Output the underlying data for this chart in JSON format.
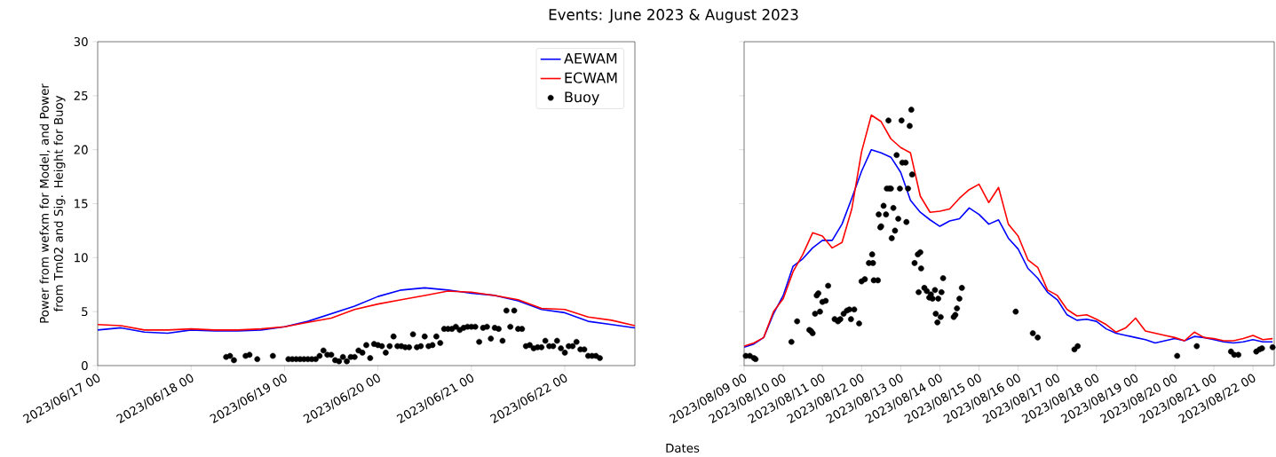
{
  "chart_data": [
    {
      "type": "line",
      "title": "Events: June 2023 & August 2023",
      "xlabel": "Dates",
      "ylabel": "Power from wefxm for Model, and Power from Tm02 and Sig. Height for Buoy",
      "legend": "top right",
      "xlim": [
        "2023-06-17T00:00",
        "2023-06-22T18:00"
      ],
      "ylim": [
        0,
        30
      ],
      "yticks": [
        0,
        5,
        10,
        15,
        20,
        25,
        30
      ],
      "xticks": [
        {
          "value": "2023-06-17T00:00",
          "label": "2023/06/17 00"
        },
        {
          "value": "2023-06-18T00:00",
          "label": "2023/06/18 00"
        },
        {
          "value": "2023-06-19T00:00",
          "label": "2023/06/19 00"
        },
        {
          "value": "2023-06-20T00:00",
          "label": "2023/06/20 00"
        },
        {
          "value": "2023-06-21T00:00",
          "label": "2023/06/21 00"
        },
        {
          "value": "2023-06-22T00:00",
          "label": "2023/06/22 00"
        }
      ],
      "x": [
        "2023-06-17T00:00",
        "2023-06-17T06:00",
        "2023-06-17T12:00",
        "2023-06-17T18:00",
        "2023-06-18T00:00",
        "2023-06-18T06:00",
        "2023-06-18T12:00",
        "2023-06-18T18:00",
        "2023-06-19T00:00",
        "2023-06-19T06:00",
        "2023-06-19T12:00",
        "2023-06-19T18:00",
        "2023-06-20T00:00",
        "2023-06-20T06:00",
        "2023-06-20T12:00",
        "2023-06-20T18:00",
        "2023-06-21T00:00",
        "2023-06-21T06:00",
        "2023-06-21T12:00",
        "2023-06-21T18:00",
        "2023-06-22T00:00",
        "2023-06-22T06:00",
        "2023-06-22T12:00",
        "2023-06-22T18:00"
      ],
      "series": [
        {
          "name": "AEWAM",
          "color": "#0000ff",
          "values": [
            3.3,
            3.5,
            3.1,
            3.0,
            3.3,
            3.2,
            3.2,
            3.3,
            3.6,
            4.1,
            4.8,
            5.5,
            6.4,
            7.0,
            7.2,
            7.0,
            6.7,
            6.5,
            6.0,
            5.2,
            4.9,
            4.1,
            3.8,
            3.5
          ]
        },
        {
          "name": "ECWAM",
          "color": "#ff0000",
          "values": [
            3.8,
            3.7,
            3.3,
            3.3,
            3.4,
            3.3,
            3.3,
            3.4,
            3.6,
            4.0,
            4.4,
            5.2,
            5.7,
            6.1,
            6.5,
            6.9,
            6.8,
            6.5,
            6.1,
            5.3,
            5.2,
            4.5,
            4.2,
            3.7
          ]
        },
        {
          "name": "Buoy",
          "type": "scatter",
          "marker": "circle",
          "color": "#000000",
          "x": [
            "2023-06-18T09:00",
            "2023-06-18T10:00",
            "2023-06-18T11:00",
            "2023-06-18T14:00",
            "2023-06-18T15:00",
            "2023-06-18T17:00",
            "2023-06-18T21:00",
            "2023-06-19T01:00",
            "2023-06-19T02:00",
            "2023-06-19T03:00",
            "2023-06-19T04:00",
            "2023-06-19T05:00",
            "2023-06-19T06:00",
            "2023-06-19T07:00",
            "2023-06-19T08:00",
            "2023-06-19T09:00",
            "2023-06-19T10:00",
            "2023-06-19T11:00",
            "2023-06-19T12:00",
            "2023-06-19T13:00",
            "2023-06-19T14:00",
            "2023-06-19T15:00",
            "2023-06-19T16:00",
            "2023-06-19T17:00",
            "2023-06-19T18:00",
            "2023-06-19T19:00",
            "2023-06-19T20:00",
            "2023-06-19T21:00",
            "2023-06-19T22:00",
            "2023-06-19T23:00",
            "2023-06-20T00:00",
            "2023-06-20T01:00",
            "2023-06-20T02:00",
            "2023-06-20T03:00",
            "2023-06-20T04:00",
            "2023-06-20T05:00",
            "2023-06-20T06:00",
            "2023-06-20T07:00",
            "2023-06-20T08:00",
            "2023-06-20T09:00",
            "2023-06-20T10:00",
            "2023-06-20T11:00",
            "2023-06-20T12:00",
            "2023-06-20T13:00",
            "2023-06-20T14:00",
            "2023-06-20T15:00",
            "2023-06-20T16:00",
            "2023-06-20T17:00",
            "2023-06-20T18:00",
            "2023-06-20T19:00",
            "2023-06-20T20:00",
            "2023-06-20T21:00",
            "2023-06-20T22:00",
            "2023-06-20T23:00",
            "2023-06-21T00:00",
            "2023-06-21T01:00",
            "2023-06-21T02:00",
            "2023-06-21T03:00",
            "2023-06-21T04:00",
            "2023-06-21T05:00",
            "2023-06-21T06:00",
            "2023-06-21T07:00",
            "2023-06-21T08:00",
            "2023-06-21T09:00",
            "2023-06-21T10:00",
            "2023-06-21T11:00",
            "2023-06-21T12:00",
            "2023-06-21T13:00",
            "2023-06-21T14:00",
            "2023-06-21T15:00",
            "2023-06-21T16:00",
            "2023-06-21T17:00",
            "2023-06-21T18:00",
            "2023-06-21T19:00",
            "2023-06-21T20:00",
            "2023-06-21T21:00",
            "2023-06-21T22:00",
            "2023-06-21T23:00",
            "2023-06-22T00:00",
            "2023-06-22T01:00",
            "2023-06-22T02:00",
            "2023-06-22T03:00",
            "2023-06-22T04:00",
            "2023-06-22T05:00",
            "2023-06-22T06:00",
            "2023-06-22T07:00",
            "2023-06-22T08:00",
            "2023-06-22T09:00"
          ],
          "values": [
            0.8,
            0.9,
            0.5,
            0.9,
            1.0,
            0.6,
            0.9,
            0.6,
            0.6,
            0.6,
            0.6,
            0.6,
            0.6,
            0.6,
            0.6,
            0.9,
            1.4,
            1.0,
            1.0,
            0.5,
            0.4,
            0.8,
            0.4,
            0.8,
            0.8,
            1.4,
            1.2,
            1.9,
            0.7,
            2.0,
            1.9,
            1.8,
            1.2,
            1.8,
            2.7,
            1.8,
            1.8,
            1.7,
            1.7,
            2.9,
            1.7,
            1.8,
            2.7,
            1.8,
            1.9,
            2.7,
            2.1,
            3.4,
            3.4,
            3.4,
            3.6,
            3.3,
            3.5,
            3.6,
            3.6,
            3.6,
            2.2,
            3.5,
            3.6,
            2.5,
            3.5,
            3.4,
            2.3,
            5.1,
            3.6,
            5.1,
            3.4,
            3.4,
            1.8,
            1.9,
            1.6,
            1.7,
            1.7,
            2.3,
            1.8,
            1.8,
            2.3,
            1.6,
            1.2,
            1.8,
            1.8,
            2.2,
            1.5,
            1.5,
            0.9,
            0.9,
            0.9,
            0.7
          ]
        }
      ]
    },
    {
      "type": "line",
      "tick_labels": "x",
      "xlim": [
        "2023-08-09T00:00",
        "2023-08-22T13:00"
      ],
      "ylim": [
        0,
        30
      ],
      "yticks": [
        0,
        5,
        10,
        15,
        20,
        25,
        30
      ],
      "xticks": [
        {
          "value": "2023-08-09T00:00",
          "label": "2023/08/09 00"
        },
        {
          "value": "2023-08-10T00:00",
          "label": "2023/08/10 00"
        },
        {
          "value": "2023-08-11T00:00",
          "label": "2023/08/11 00"
        },
        {
          "value": "2023-08-12T00:00",
          "label": "2023/08/12 00"
        },
        {
          "value": "2023-08-13T00:00",
          "label": "2023/08/13 00"
        },
        {
          "value": "2023-08-14T00:00",
          "label": "2023/08/14 00"
        },
        {
          "value": "2023-08-15T00:00",
          "label": "2023/08/15 00"
        },
        {
          "value": "2023-08-16T00:00",
          "label": "2023/08/16 00"
        },
        {
          "value": "2023-08-17T00:00",
          "label": "2023/08/17 00"
        },
        {
          "value": "2023-08-18T00:00",
          "label": "2023/08/18 00"
        },
        {
          "value": "2023-08-19T00:00",
          "label": "2023/08/19 00"
        },
        {
          "value": "2023-08-20T00:00",
          "label": "2023/08/20 00"
        },
        {
          "value": "2023-08-21T00:00",
          "label": "2023/08/21 00"
        },
        {
          "value": "2023-08-22T00:00",
          "label": "2023/08/22 00"
        }
      ],
      "x": [
        "2023-08-09T00:00",
        "2023-08-09T06:00",
        "2023-08-09T12:00",
        "2023-08-09T18:00",
        "2023-08-10T00:00",
        "2023-08-10T06:00",
        "2023-08-10T12:00",
        "2023-08-10T18:00",
        "2023-08-11T00:00",
        "2023-08-11T06:00",
        "2023-08-11T12:00",
        "2023-08-11T18:00",
        "2023-08-12T00:00",
        "2023-08-12T06:00",
        "2023-08-12T12:00",
        "2023-08-12T18:00",
        "2023-08-13T00:00",
        "2023-08-13T06:00",
        "2023-08-13T12:00",
        "2023-08-13T18:00",
        "2023-08-14T00:00",
        "2023-08-14T06:00",
        "2023-08-14T12:00",
        "2023-08-14T18:00",
        "2023-08-15T00:00",
        "2023-08-15T06:00",
        "2023-08-15T12:00",
        "2023-08-15T18:00",
        "2023-08-16T00:00",
        "2023-08-16T06:00",
        "2023-08-16T12:00",
        "2023-08-16T18:00",
        "2023-08-17T00:00",
        "2023-08-17T06:00",
        "2023-08-17T12:00",
        "2023-08-17T18:00",
        "2023-08-18T00:00",
        "2023-08-18T06:00",
        "2023-08-18T12:00",
        "2023-08-18T18:00",
        "2023-08-19T00:00",
        "2023-08-19T06:00",
        "2023-08-19T12:00",
        "2023-08-19T18:00",
        "2023-08-20T00:00",
        "2023-08-20T06:00",
        "2023-08-20T12:00",
        "2023-08-20T18:00",
        "2023-08-21T00:00",
        "2023-08-21T06:00",
        "2023-08-21T12:00",
        "2023-08-21T18:00",
        "2023-08-22T00:00",
        "2023-08-22T06:00",
        "2023-08-22T12:00"
      ],
      "series": [
        {
          "color": "#0000ff",
          "values": [
            1.7,
            2.0,
            2.6,
            4.8,
            6.5,
            9.2,
            9.9,
            10.9,
            11.6,
            11.6,
            13.1,
            15.5,
            18.0,
            20.0,
            19.7,
            19.3,
            17.9,
            15.3,
            14.2,
            13.5,
            12.9,
            13.4,
            13.6,
            14.6,
            14.0,
            13.1,
            13.5,
            11.8,
            10.8,
            9.0,
            8.1,
            6.8,
            6.1,
            4.7,
            4.2,
            4.3,
            4.1,
            3.4,
            3.0,
            2.8,
            2.6,
            2.4,
            2.1,
            2.3,
            2.5,
            2.3,
            2.7,
            2.6,
            2.4,
            2.2,
            2.1,
            2.2,
            2.4,
            2.2,
            2.2
          ]
        },
        {
          "color": "#ff0000",
          "values": [
            1.8,
            2.1,
            2.6,
            5.0,
            6.2,
            8.7,
            10.3,
            12.3,
            12.0,
            10.9,
            11.4,
            14.5,
            19.8,
            23.2,
            22.6,
            21.0,
            20.2,
            19.7,
            15.7,
            14.2,
            14.3,
            14.5,
            15.5,
            16.3,
            16.8,
            15.1,
            16.5,
            13.1,
            12.0,
            9.8,
            9.1,
            7.0,
            6.5,
            5.2,
            4.6,
            4.7,
            4.3,
            3.8,
            3.1,
            3.5,
            4.4,
            3.2,
            3.0,
            2.8,
            2.6,
            2.3,
            3.1,
            2.6,
            2.5,
            2.3,
            2.3,
            2.5,
            2.8,
            2.4,
            2.5
          ]
        },
        {
          "type": "scatter",
          "marker": "circle",
          "color": "#000000",
          "x": [
            "2023-08-09T01:00",
            "2023-08-09T03:30",
            "2023-08-09T06:00",
            "2023-08-09T07:00",
            "2023-08-10T05:00",
            "2023-08-10T08:30",
            "2023-08-10T16:00",
            "2023-08-10T17:00",
            "2023-08-10T18:00",
            "2023-08-10T19:30",
            "2023-08-10T20:30",
            "2023-08-10T21:30",
            "2023-08-10T22:30",
            "2023-08-11T00:00",
            "2023-08-11T02:00",
            "2023-08-11T03:30",
            "2023-08-11T07:30",
            "2023-08-11T09:30",
            "2023-08-11T10:00",
            "2023-08-11T11:00",
            "2023-08-11T13:00",
            "2023-08-11T15:00",
            "2023-08-11T16:30",
            "2023-08-11T17:30",
            "2023-08-11T19:30",
            "2023-08-11T22:30",
            "2023-08-12T00:00",
            "2023-08-12T02:00",
            "2023-08-12T04:30",
            "2023-08-12T06:30",
            "2023-08-12T07:00",
            "2023-08-12T07:30",
            "2023-08-12T10:00",
            "2023-08-12T10:30",
            "2023-08-12T11:30",
            "2023-08-12T12:00",
            "2023-08-12T13:30",
            "2023-08-12T15:00",
            "2023-08-12T15:30",
            "2023-08-12T16:30",
            "2023-08-12T17:00",
            "2023-08-12T18:00",
            "2023-08-12T18:30",
            "2023-08-12T19:30",
            "2023-08-12T20:30",
            "2023-08-12T21:30",
            "2023-08-12T22:30",
            "2023-08-12T23:30",
            "2023-08-13T00:30",
            "2023-08-13T01:00",
            "2023-08-13T03:00",
            "2023-08-13T03:30",
            "2023-08-13T04:30",
            "2023-08-13T05:30",
            "2023-08-13T06:30",
            "2023-08-13T07:00",
            "2023-08-13T08:30",
            "2023-08-13T10:30",
            "2023-08-13T11:00",
            "2023-08-13T12:00",
            "2023-08-13T12:30",
            "2023-08-13T14:30",
            "2023-08-13T16:00",
            "2023-08-13T17:30",
            "2023-08-13T18:30",
            "2023-08-13T19:30",
            "2023-08-13T21:00",
            "2023-08-13T21:30",
            "2023-08-13T22:30",
            "2023-08-13T23:00",
            "2023-08-14T00:30",
            "2023-08-14T01:00",
            "2023-08-14T02:00",
            "2023-08-14T08:30",
            "2023-08-14T09:30",
            "2023-08-14T10:30",
            "2023-08-14T12:00",
            "2023-08-14T13:30",
            "2023-08-15T22:30",
            "2023-08-16T09:00",
            "2023-08-16T12:00",
            "2023-08-17T10:30",
            "2023-08-17T12:30",
            "2023-08-20T01:30",
            "2023-08-20T13:30",
            "2023-08-21T10:30",
            "2023-08-21T12:30",
            "2023-08-21T15:00",
            "2023-08-22T02:00",
            "2023-08-22T04:00",
            "2023-08-22T05:30",
            "2023-08-22T12:00"
          ],
          "values": [
            0.9,
            0.9,
            0.7,
            0.6,
            2.2,
            4.1,
            3.3,
            3.2,
            3.0,
            4.8,
            6.5,
            6.7,
            5.0,
            5.9,
            6.0,
            7.4,
            4.3,
            4.1,
            4.2,
            4.3,
            4.8,
            5.1,
            5.2,
            4.3,
            5.2,
            3.9,
            7.8,
            8.0,
            9.5,
            10.3,
            9.5,
            7.9,
            7.9,
            14.0,
            12.8,
            12.9,
            14.8,
            14.0,
            16.4,
            22.7,
            16.4,
            16.4,
            11.8,
            14.6,
            12.5,
            19.5,
            13.6,
            16.4,
            22.7,
            18.8,
            18.8,
            13.3,
            16.4,
            22.2,
            23.7,
            17.7,
            9.5,
            10.3,
            6.8,
            10.5,
            9.0,
            7.2,
            6.9,
            6.3,
            6.6,
            6.2,
            7.0,
            4.8,
            4.0,
            6.2,
            4.5,
            6.8,
            8.1,
            4.5,
            4.7,
            5.3,
            6.2,
            7.2,
            5.0,
            3.0,
            2.6,
            1.5,
            1.8,
            0.9,
            1.8,
            1.3,
            1.0,
            1.0,
            1.3,
            1.5,
            1.6,
            1.7
          ]
        }
      ]
    }
  ]
}
